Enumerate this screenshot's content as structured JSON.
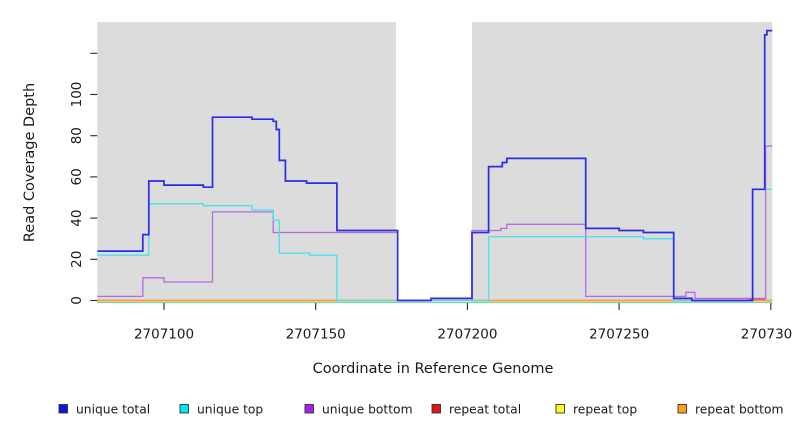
{
  "y_axis": {
    "label": "Read Coverage Depth",
    "tick_values": [
      0,
      20,
      40,
      60,
      80,
      100
    ],
    "extra_unlabeled_tick": 120
  },
  "x_axis": {
    "label": "Coordinate in Reference Genome",
    "tick_values": [
      2707100,
      2707150,
      2707200,
      2707250,
      2707300
    ]
  },
  "legend": {
    "items": [
      {
        "label": "unique total",
        "color": "#0f0ff2"
      },
      {
        "label": "unique top",
        "color": "#00e6f6"
      },
      {
        "label": "unique bottom",
        "color": "#a322ec"
      },
      {
        "label": "repeat total",
        "color": "#e31414"
      },
      {
        "label": "repeat top",
        "color": "#fbfb1f"
      },
      {
        "label": "repeat bottom",
        "color": "#ffa012"
      }
    ]
  },
  "chart_data": {
    "type": "line",
    "subtype": "step-coverage-plot",
    "x_range": [
      2707078,
      2707301
    ],
    "y_visible_ticks": [
      0,
      20,
      40,
      60,
      80,
      100,
      120
    ],
    "background": {
      "panel_color": "#dcdcdc",
      "masked_white_gap_x": [
        2707176.5,
        2707201.5
      ]
    },
    "baseline_marker": {
      "color": "#80d7a6",
      "y": -1
    },
    "series": [
      {
        "name": "unique total",
        "color": "#2b2be8",
        "width": 1.7,
        "points": [
          [
            2707078,
            24
          ],
          [
            2707093,
            32
          ],
          [
            2707095,
            58
          ],
          [
            2707100,
            56
          ],
          [
            2707113,
            55
          ],
          [
            2707116,
            89
          ],
          [
            2707129,
            88
          ],
          [
            2707136,
            87
          ],
          [
            2707137,
            83
          ],
          [
            2707138,
            68
          ],
          [
            2707140,
            58
          ],
          [
            2707147,
            57
          ],
          [
            2707157,
            34
          ],
          [
            2707177,
            0
          ],
          [
            2707188,
            1
          ],
          [
            2707201.5,
            33
          ],
          [
            2707207,
            65
          ],
          [
            2707211.5,
            67
          ],
          [
            2707213,
            69
          ],
          [
            2707239,
            35
          ],
          [
            2707250,
            34
          ],
          [
            2707258,
            33
          ],
          [
            2707268,
            1
          ],
          [
            2707274,
            0
          ],
          [
            2707294,
            54
          ],
          [
            2707298,
            129
          ],
          [
            2707298.7,
            131
          ]
        ]
      },
      {
        "name": "unique top",
        "color": "#45e2f0",
        "width": 1.3,
        "points": [
          [
            2707078,
            22
          ],
          [
            2707095,
            47
          ],
          [
            2707113,
            46
          ],
          [
            2707129,
            44
          ],
          [
            2707136,
            39
          ],
          [
            2707138,
            23
          ],
          [
            2707148,
            22
          ],
          [
            2707157,
            0
          ],
          [
            2707207,
            31
          ],
          [
            2707258,
            30
          ],
          [
            2707268,
            0
          ],
          [
            2707294,
            54
          ]
        ]
      },
      {
        "name": "unique bottom",
        "color": "#b46ae2",
        "width": 1.3,
        "points": [
          [
            2707078,
            2
          ],
          [
            2707093,
            11
          ],
          [
            2707100,
            9
          ],
          [
            2707116,
            43
          ],
          [
            2707136,
            33
          ],
          [
            2707177,
            0
          ],
          [
            2707201.5,
            34
          ],
          [
            2707211,
            35
          ],
          [
            2707213,
            37
          ],
          [
            2707239,
            2
          ],
          [
            2707272,
            4
          ],
          [
            2707275,
            1
          ],
          [
            2707298.3,
            75
          ]
        ]
      },
      {
        "name": "repeat total",
        "color": "#e33b3b",
        "width": 1.3,
        "points": [
          [
            2707078,
            0
          ],
          [
            2707293,
            0.7
          ],
          [
            2707298,
            0
          ]
        ]
      },
      {
        "name": "repeat top",
        "color": "#fdfd45",
        "width": 1.3,
        "points": [
          [
            2707078,
            0
          ]
        ]
      },
      {
        "name": "repeat bottom",
        "color": "#ff9f24",
        "width": 1.4,
        "points": [
          [
            2707078,
            0
          ]
        ]
      }
    ]
  }
}
